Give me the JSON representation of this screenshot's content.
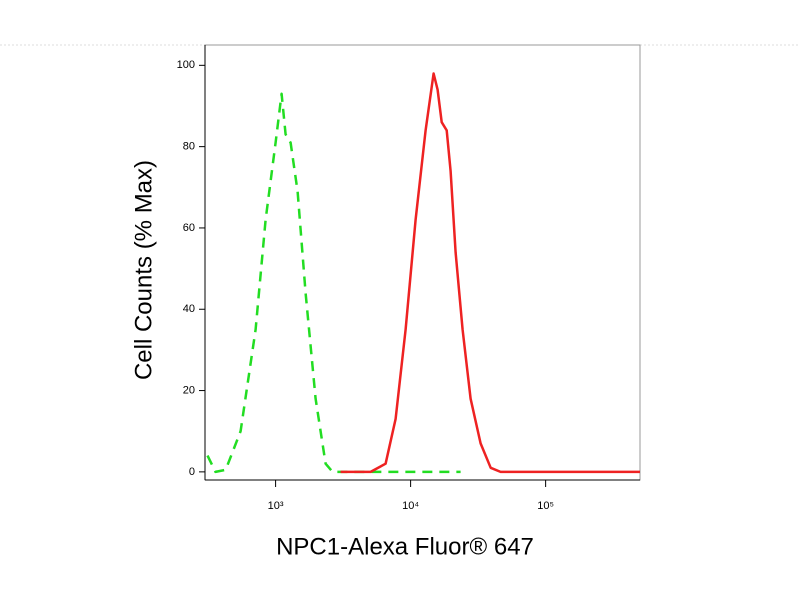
{
  "chart_data": {
    "type": "line",
    "xlabel": "NPC1-Alexa Fluor® 647",
    "ylabel": "Cell Counts (% Max)",
    "xscale": "log",
    "xlim": [
      300,
      500000
    ],
    "ylim": [
      -2,
      105
    ],
    "xticks": [
      {
        "value": 1000,
        "label": "10³"
      },
      {
        "value": 10000,
        "label": "10⁴"
      },
      {
        "value": 100000,
        "label": "10⁵"
      }
    ],
    "yticks": [
      0,
      20,
      40,
      60,
      80,
      100
    ],
    "series": [
      {
        "color": "#22dd22",
        "dashed": true,
        "x": [
          313,
          359,
          427,
          551,
          711,
          843,
          1000,
          1108,
          1186,
          1291,
          1455,
          1668,
          1978,
          2346,
          2642,
          23440
        ],
        "values": [
          4,
          0,
          0.5,
          10,
          35,
          62,
          81,
          93,
          83,
          81,
          69,
          44,
          18,
          2,
          0,
          0
        ]
      },
      {
        "color": "#ee2222",
        "dashed": false,
        "x": [
          3028,
          5058,
          6531,
          7743,
          9184,
          10890,
          12920,
          14800,
          15850,
          16980,
          18490,
          19770,
          21540,
          24270,
          27800,
          33000,
          39160,
          46420,
          500000
        ],
        "values": [
          0,
          0,
          2,
          13,
          35,
          62,
          84,
          98,
          94,
          86,
          84,
          74,
          54,
          35,
          18,
          7,
          1,
          0,
          0
        ]
      }
    ]
  }
}
